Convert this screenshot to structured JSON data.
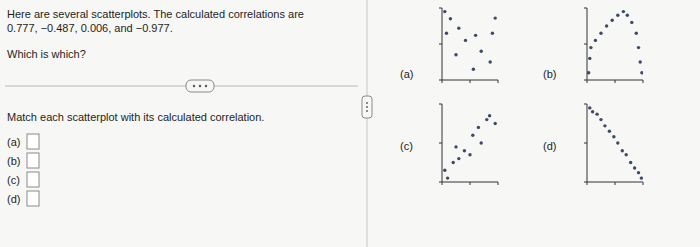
{
  "intro": [
    "Here are several scatterplots. The calculated correlations are",
    "0.777, −0.487, 0.006, and −0.977."
  ],
  "question": "Which is which?",
  "instruction": "Match each scatterplot with its calculated correlation.",
  "answer_labels": [
    "(a)",
    "(b)",
    "(c)",
    "(d)"
  ],
  "chart_data": [
    {
      "type": "scatter",
      "title": "(a)",
      "color": "#3b4a68",
      "marker": "circle",
      "tick_labels": false,
      "x": [
        0.5,
        1.5,
        0.8,
        3.0,
        4.2,
        2.5,
        6.0,
        9.0,
        7.0,
        8.6,
        5.6,
        9.5
      ],
      "values": [
        9.5,
        8.5,
        6.5,
        7.2,
        5.5,
        3.5,
        6.2,
        6.5,
        4.0,
        2.5,
        1.5,
        8.6
      ],
      "xlim": [
        0,
        10
      ],
      "ylim": [
        0,
        10
      ],
      "xticks": [
        0,
        5,
        10
      ],
      "yticks": [
        0,
        5,
        10
      ]
    },
    {
      "type": "scatter",
      "title": "(b)",
      "color": "#3b4a68",
      "marker": "circle",
      "tick_labels": false,
      "x": [
        0.3,
        0.5,
        0.7,
        1.5,
        2.5,
        3.5,
        4.5,
        5.5,
        6.5,
        7.2,
        8.0,
        8.8,
        9.2,
        9.5,
        9.8
      ],
      "values": [
        1.0,
        3.0,
        4.5,
        5.5,
        6.5,
        7.5,
        8.3,
        9.0,
        9.5,
        9.0,
        8.0,
        6.5,
        4.5,
        2.5,
        1.0
      ],
      "xlim": [
        0,
        10
      ],
      "ylim": [
        0,
        10
      ],
      "xticks": [
        0,
        5,
        10
      ],
      "yticks": [
        0,
        5,
        10
      ]
    },
    {
      "type": "scatter",
      "title": "(c)",
      "color": "#3b4a68",
      "marker": "circle",
      "tick_labels": false,
      "x": [
        0.5,
        1.0,
        2.0,
        3.0,
        2.5,
        4.0,
        5.0,
        5.5,
        6.5,
        7.0,
        8.0,
        8.5,
        9.5
      ],
      "values": [
        1.5,
        0.5,
        2.5,
        3.0,
        4.5,
        4.0,
        3.5,
        6.0,
        7.0,
        5.0,
        8.0,
        8.5,
        7.5
      ],
      "xlim": [
        0,
        10
      ],
      "ylim": [
        0,
        10
      ],
      "xticks": [
        0,
        5,
        10
      ],
      "yticks": [
        0,
        5,
        10
      ]
    },
    {
      "type": "scatter",
      "title": "(d)",
      "color": "#3b4a68",
      "marker": "circle",
      "tick_labels": false,
      "x": [
        0.5,
        1.0,
        1.8,
        2.5,
        3.2,
        4.0,
        4.8,
        5.5,
        6.3,
        7.0,
        7.8,
        8.5,
        9.2,
        9.7
      ],
      "values": [
        9.5,
        9.0,
        8.7,
        8.0,
        7.2,
        6.5,
        5.8,
        5.0,
        4.0,
        3.5,
        2.5,
        1.8,
        1.2,
        0.5
      ],
      "xlim": [
        0,
        10
      ],
      "ylim": [
        0,
        10
      ],
      "xticks": [
        0,
        5,
        10
      ],
      "yticks": [
        0,
        5,
        10
      ]
    }
  ]
}
